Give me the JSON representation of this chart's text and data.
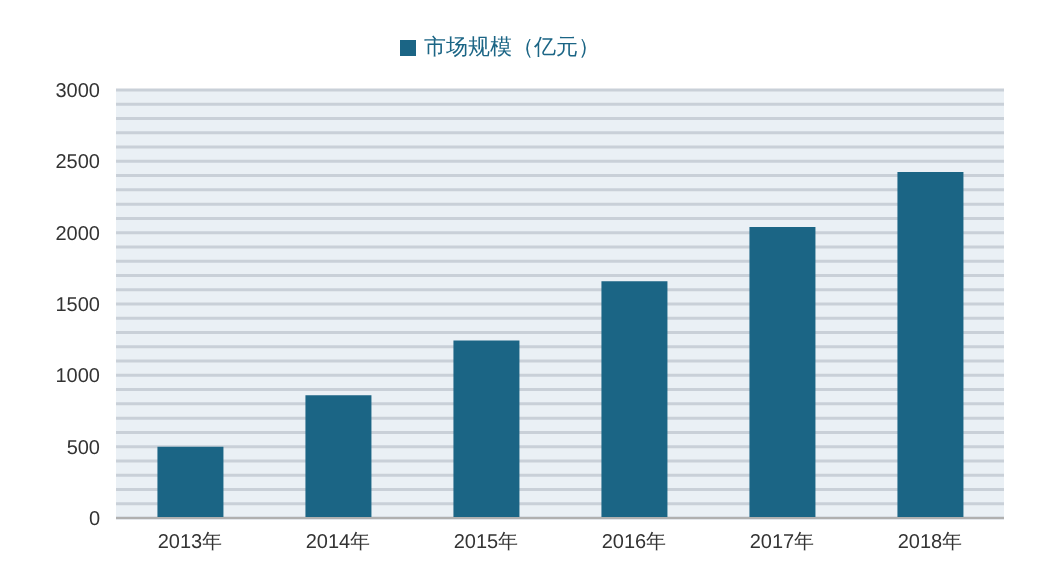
{
  "chart_data": {
    "type": "bar",
    "categories": [
      "2013年",
      "2014年",
      "2015年",
      "2016年",
      "2017年",
      "2018年"
    ],
    "series": [
      {
        "name": "市场规模（亿元）",
        "color": "#1b6585",
        "values": [
          500,
          860,
          1245,
          1660,
          2040,
          2425
        ]
      }
    ],
    "ylim": [
      0,
      3000
    ],
    "yticks": [
      0,
      {
        "value": 100,
        "label": null
      },
      {
        "value": 200,
        "label": null
      },
      {
        "value": 300,
        "label": null
      },
      {
        "value": 400,
        "label": null
      },
      500,
      {
        "value": 600,
        "label": null
      },
      {
        "value": 700,
        "label": null
      },
      {
        "value": 800,
        "label": null
      },
      {
        "value": 900,
        "label": null
      },
      1000,
      {
        "value": 1100,
        "label": null
      },
      {
        "value": 1200,
        "label": null
      },
      {
        "value": 1300,
        "label": null
      },
      {
        "value": 1400,
        "label": null
      },
      1500,
      {
        "value": 1600,
        "label": null
      },
      {
        "value": 1700,
        "label": null
      },
      {
        "value": 1800,
        "label": null
      },
      {
        "value": 1900,
        "label": null
      },
      2000,
      {
        "value": 2100,
        "label": null
      },
      {
        "value": 2200,
        "label": null
      },
      {
        "value": 2300,
        "label": null
      },
      {
        "value": 2400,
        "label": null
      },
      2500,
      {
        "value": 2600,
        "label": null
      },
      {
        "value": 2700,
        "label": null
      },
      {
        "value": 2800,
        "label": null
      },
      {
        "value": 2900,
        "label": null
      },
      3000
    ],
    "grid": "y",
    "legend": "top"
  }
}
